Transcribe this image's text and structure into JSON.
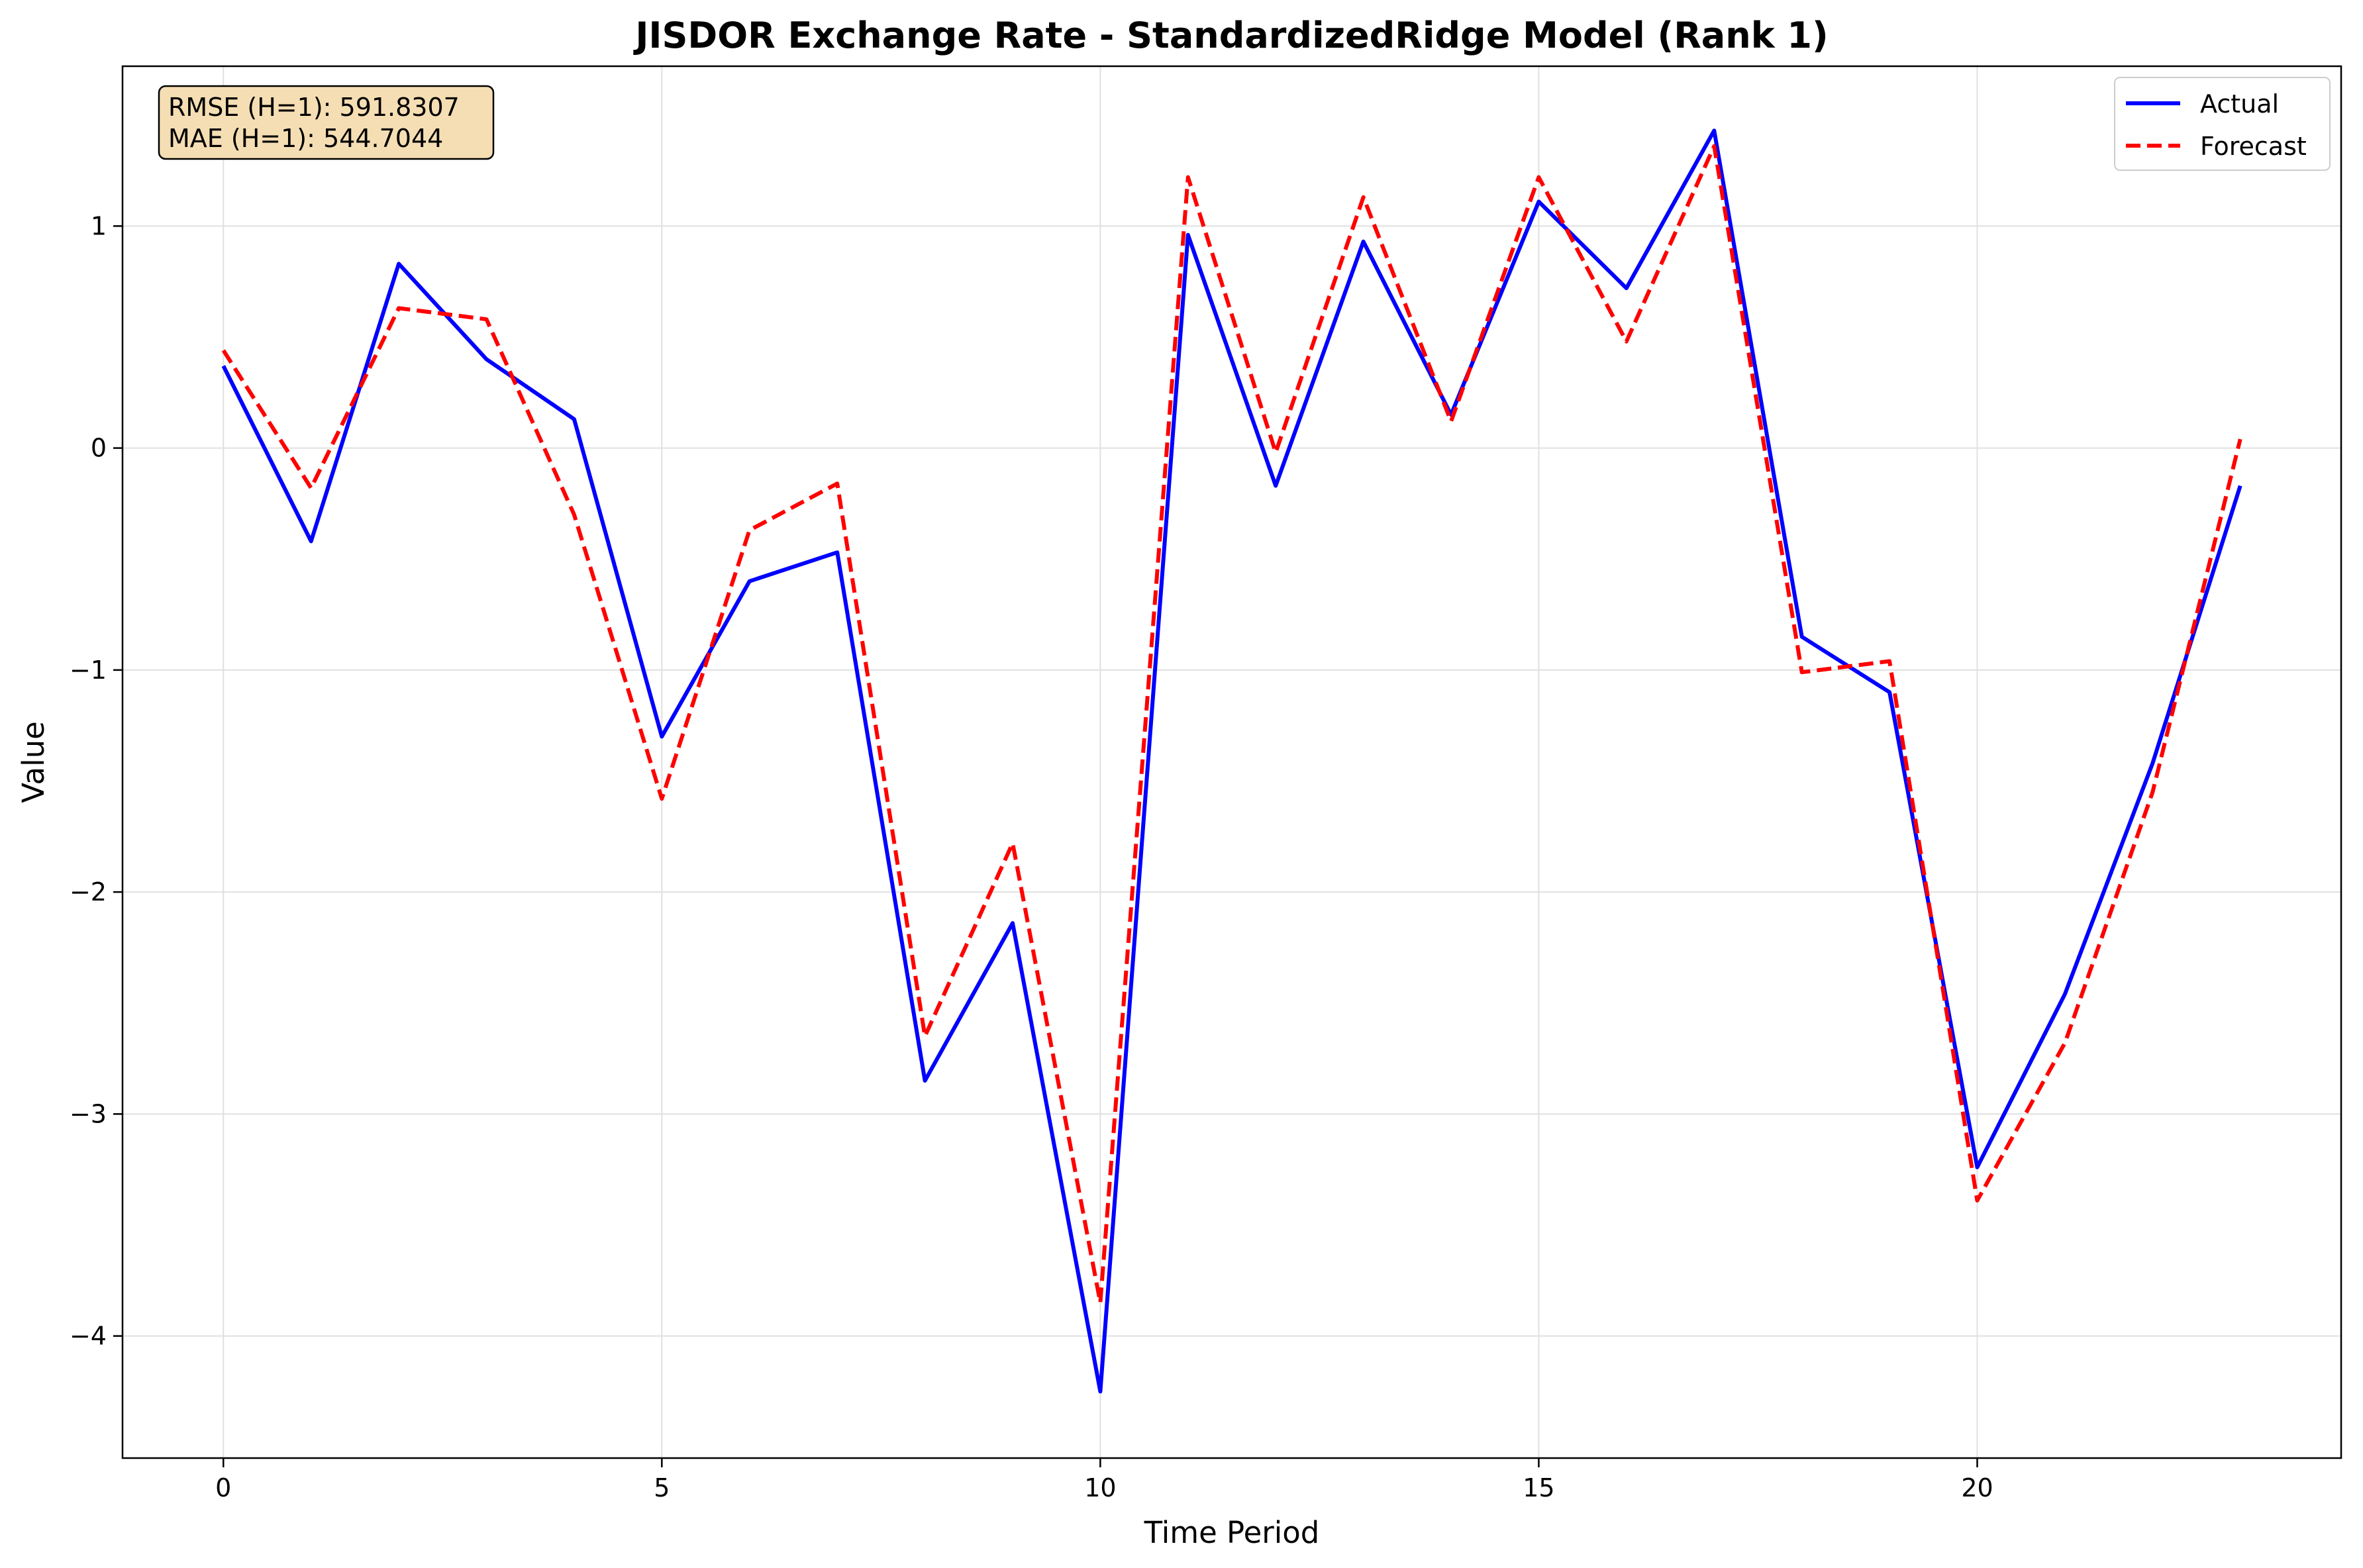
{
  "chart_data": {
    "type": "line",
    "title": "JISDOR Exchange Rate - StandardizedRidge Model (Rank 1)",
    "xlabel": "Time Period",
    "ylabel": "Value",
    "xlim": [
      -1.15,
      24.15
    ],
    "ylim": [
      -4.55,
      1.72
    ],
    "x_ticks": [
      0,
      5,
      10,
      15,
      20
    ],
    "y_ticks": [
      -4,
      -3,
      -2,
      -1,
      0,
      1
    ],
    "x_tick_labels": [
      "0",
      "5",
      "10",
      "15",
      "20"
    ],
    "y_tick_labels": [
      "−4",
      "−3",
      "−2",
      "−1",
      "0",
      "1"
    ],
    "grid": true,
    "legend_position": "top-right",
    "x": [
      0,
      1,
      2,
      3,
      4,
      5,
      6,
      7,
      8,
      9,
      10,
      11,
      12,
      13,
      14,
      15,
      16,
      17,
      18,
      19,
      20,
      21,
      22,
      23
    ],
    "series": [
      {
        "name": "Actual",
        "color": "#0000ff",
        "style": "solid",
        "values": [
          0.37,
          -0.42,
          0.83,
          0.4,
          0.13,
          -1.3,
          -0.6,
          -0.47,
          -2.85,
          -2.14,
          -4.25,
          0.96,
          -0.17,
          0.93,
          0.15,
          1.11,
          0.72,
          1.43,
          -0.85,
          -1.1,
          -3.24,
          -2.46,
          -1.42,
          -0.17
        ]
      },
      {
        "name": "Forecast",
        "color": "#ff0000",
        "style": "dashed",
        "values": [
          0.44,
          -0.18,
          0.63,
          0.58,
          -0.3,
          -1.58,
          -0.37,
          -0.16,
          -2.65,
          -1.78,
          -3.85,
          1.22,
          -0.02,
          1.13,
          0.12,
          1.22,
          0.48,
          1.36,
          -1.01,
          -0.96,
          -3.39,
          -2.68,
          -1.55,
          0.04
        ]
      }
    ],
    "annotation_lines": [
      "RMSE (H=1): 591.8307",
      "MAE (H=1): 544.7044"
    ],
    "annotation_bg": "#f5deb3"
  }
}
